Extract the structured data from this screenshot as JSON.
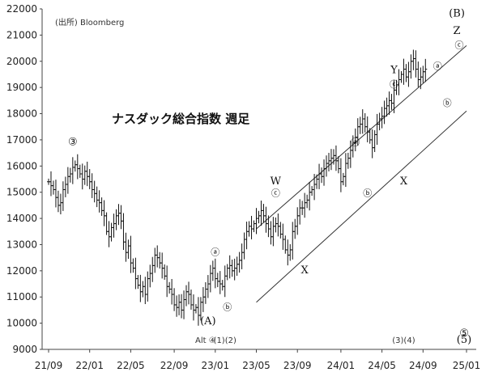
{
  "chart_data": {
    "type": "ohlc",
    "title": "ナスダック総合指数 週足",
    "source": "(出所) Bloomberg",
    "ylim": [
      9000,
      22000
    ],
    "yticks": [
      "9000",
      "10000",
      "11000",
      "12000",
      "13000",
      "14000",
      "15000",
      "16000",
      "17000",
      "18000",
      "19000",
      "20000",
      "21000",
      "22000"
    ],
    "xtick_labels": [
      "21/09",
      "22/01",
      "22/05",
      "22/09",
      "23/01",
      "23/05",
      "23/09",
      "24/01",
      "24/05",
      "24/09",
      "25/01"
    ],
    "xtick_index": [
      0,
      17,
      34,
      52,
      69,
      86,
      103,
      121,
      138,
      155,
      173
    ],
    "grid": false,
    "approx_weekly_close": [
      15400,
      15250,
      15100,
      14800,
      14500,
      14600,
      15100,
      15300,
      15600,
      15700,
      15950,
      16050,
      15900,
      15700,
      15500,
      15800,
      15600,
      15400,
      15100,
      14950,
      14700,
      14600,
      14300,
      14100,
      13500,
      13300,
      13650,
      13800,
      14100,
      14200,
      13900,
      13100,
      12700,
      12950,
      12300,
      12100,
      11700,
      11450,
      11200,
      11400,
      11100,
      11700,
      11900,
      12200,
      12600,
      12500,
      12300,
      12100,
      11800,
      11400,
      11300,
      11100,
      10700,
      10600,
      10800,
      10500,
      10900,
      11200,
      11100,
      10700,
      10500,
      10600,
      10300,
      10800,
      11000,
      11300,
      11500,
      11900,
      12100,
      11700,
      11600,
      11500,
      11400,
      11800,
      12100,
      12200,
      12000,
      12100,
      12250,
      12400,
      12700,
      13200,
      13500,
      13700,
      13600,
      13800,
      14000,
      14100,
      14300,
      14100,
      13800,
      13600,
      13300,
      13700,
      13800,
      13700,
      13400,
      13200,
      12800,
      12600,
      12800,
      13500,
      13700,
      14100,
      14400,
      14400,
      14600,
      14700,
      15000,
      15100,
      15300,
      15500,
      15700,
      15600,
      15900,
      16100,
      16200,
      16300,
      16400,
      16200,
      15900,
      15400,
      15600,
      16100,
      16300,
      16600,
      16900,
      17100,
      17500,
      17600,
      17800,
      17500,
      17300,
      17000,
      16700,
      17200,
      17600,
      17800,
      17900,
      18200,
      18300,
      18500,
      18400,
      18900,
      19100,
      19300,
      19500,
      19700,
      19400,
      19600,
      20000,
      20100,
      19700,
      19300,
      19400,
      19600,
      19700
    ],
    "lines": [
      {
        "x": [
          86,
          173
        ],
        "y": [
          13600,
          20600
        ]
      },
      {
        "x": [
          86,
          173
        ],
        "y": [
          10800,
          18100
        ]
      }
    ],
    "annotations": [
      {
        "text": "③",
        "x": 10,
        "y": 16800
      },
      {
        "text": "ⓐ",
        "x": 69,
        "y": 12600
      },
      {
        "text": "ⓑ",
        "x": 74,
        "y": 10500
      },
      {
        "text": "(A)",
        "x": 66,
        "y": 9950
      },
      {
        "text": "W",
        "x": 94,
        "y": 15300
      },
      {
        "text": "ⓒ",
        "x": 94,
        "y": 14850
      },
      {
        "text": "X",
        "x": 106,
        "y": 11900
      },
      {
        "text": "ⓐ",
        "x": 127,
        "y": 16800
      },
      {
        "text": "ⓑ",
        "x": 132,
        "y": 14850
      },
      {
        "text": "Y",
        "x": 143,
        "y": 19550
      },
      {
        "text": "ⓒ",
        "x": 143,
        "y": 19000
      },
      {
        "text": "X",
        "x": 147,
        "y": 15300
      },
      {
        "text": "ⓐ",
        "x": 161,
        "y": 19700
      },
      {
        "text": "ⓑ",
        "x": 165,
        "y": 18300
      },
      {
        "text": "(B)",
        "x": 169,
        "y": 21700
      },
      {
        "text": "Z",
        "x": 169,
        "y": 21050
      },
      {
        "text": "ⓒ",
        "x": 170,
        "y": 20500
      },
      {
        "text": "⑤",
        "x": 172,
        "y": 9500
      },
      {
        "text": "Alt ④",
        "x": 65,
        "y": 9250
      },
      {
        "text": "(1)(2)",
        "x": 73,
        "y": 9250
      },
      {
        "text": "(3)(4)",
        "x": 147,
        "y": 9250
      },
      {
        "text": "(5)",
        "x": 172,
        "y": 9250
      }
    ]
  }
}
